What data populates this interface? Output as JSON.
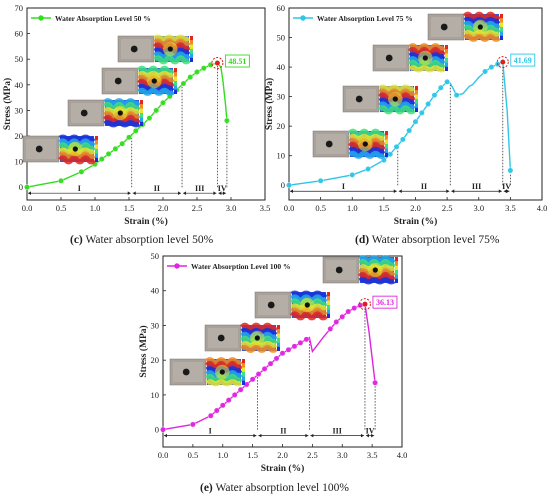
{
  "chart_data": [
    {
      "type": "line",
      "id": "c",
      "caption_tag": "(c)",
      "caption_text": "Water absorption level 50%",
      "legend": "Water Absorption Level 50 %",
      "color": "#33dd1e",
      "xlabel": "Strain (%)",
      "ylabel": "Stress (MPa)",
      "xlim": [
        0,
        3.5
      ],
      "ylim": [
        -5,
        70
      ],
      "xticks": [
        "0.0",
        "0.5",
        "1.0",
        "1.5",
        "2.0",
        "2.5",
        "3.0",
        "3.5"
      ],
      "yticks": [
        "0",
        "10",
        "20",
        "30",
        "40",
        "50",
        "60",
        "70"
      ],
      "series": [
        {
          "x": [
            0.0,
            0.2,
            0.5,
            0.8,
            1.0,
            1.1,
            1.2,
            1.3,
            1.4,
            1.5,
            1.6,
            1.7,
            1.8,
            1.9,
            2.0,
            2.1,
            2.2,
            2.3,
            2.4,
            2.5,
            2.6,
            2.7,
            2.8,
            2.85,
            2.88,
            2.92,
            2.94
          ],
          "y": [
            0.0,
            1.0,
            2.5,
            6.0,
            9.0,
            11.0,
            13.0,
            15.0,
            17.0,
            19.5,
            22.0,
            24.5,
            27.0,
            30.0,
            33.0,
            35.5,
            38.0,
            40.5,
            43.0,
            45.0,
            46.5,
            47.8,
            48.51,
            47.0,
            42.0,
            32.0,
            26.0
          ]
        }
      ],
      "markers_x": [
        0.0,
        0.5,
        0.8,
        1.0,
        1.1,
        1.2,
        1.3,
        1.4,
        1.5,
        1.6,
        1.7,
        1.8,
        1.9,
        2.0,
        2.1,
        2.2,
        2.3,
        2.4,
        2.5,
        2.6,
        2.7,
        2.8,
        2.94
      ],
      "peak": {
        "x": 2.8,
        "y": 48.51,
        "label": "48.51"
      },
      "stage_boundaries": [
        1.54,
        2.28,
        2.8,
        2.94
      ],
      "stages": [
        "I",
        "II",
        "III",
        "IV"
      ]
    },
    {
      "type": "line",
      "id": "d",
      "caption_tag": "(d)",
      "caption_text": "Water absorption level 75%",
      "legend": "Water Absorption Level 75 %",
      "color": "#2ec6e8",
      "xlabel": "Strain (%)",
      "ylabel": "Stress (MPa)",
      "xlim": [
        0,
        4.0
      ],
      "ylim": [
        -5,
        60
      ],
      "xticks": [
        "0.0",
        "0.5",
        "1.0",
        "1.5",
        "2.0",
        "2.5",
        "3.0",
        "3.5",
        "4.0"
      ],
      "yticks": [
        "0",
        "10",
        "20",
        "30",
        "40",
        "50",
        "60"
      ],
      "series": [
        {
          "x": [
            0.0,
            0.5,
            1.0,
            1.25,
            1.5,
            1.6,
            1.7,
            1.8,
            1.9,
            2.0,
            2.1,
            2.2,
            2.3,
            2.4,
            2.5,
            2.55,
            2.65,
            2.75,
            2.85,
            2.9,
            3.0,
            3.1,
            3.2,
            3.3,
            3.38,
            3.45,
            3.5
          ],
          "y": [
            0.0,
            1.5,
            3.5,
            5.5,
            8.5,
            10.5,
            13.0,
            15.5,
            18.5,
            21.5,
            24.5,
            27.5,
            30.5,
            33.0,
            35.0,
            34.5,
            30.5,
            31.0,
            33.5,
            34.0,
            36.5,
            38.5,
            40.0,
            41.0,
            41.69,
            25.0,
            5.0
          ]
        }
      ],
      "markers_x": [
        0.0,
        0.5,
        1.0,
        1.25,
        1.5,
        1.6,
        1.7,
        1.8,
        1.9,
        2.0,
        2.1,
        2.2,
        2.3,
        2.4,
        2.5,
        2.65,
        3.1,
        3.2,
        3.3,
        3.38,
        3.5
      ],
      "peak": {
        "x": 3.38,
        "y": 41.69,
        "label": "41.69"
      },
      "stage_boundaries": [
        1.72,
        2.55,
        3.38,
        3.5
      ],
      "stages": [
        "I",
        "II",
        "III",
        "IV"
      ]
    },
    {
      "type": "line",
      "id": "e",
      "caption_tag": "(e)",
      "caption_text": "Water absorption level 100%",
      "legend": "Water Absorption Level 100 %",
      "color": "#e024e0",
      "xlabel": "Strain (%)",
      "ylabel": "Stress (MPa)",
      "xlim": [
        0,
        4.0
      ],
      "ylim": [
        -5,
        50
      ],
      "xticks": [
        "0.0",
        "0.5",
        "1.0",
        "1.5",
        "2.0",
        "2.5",
        "3.0",
        "3.5",
        "4.0"
      ],
      "yticks": [
        "0",
        "10",
        "20",
        "30",
        "40",
        "50"
      ],
      "series": [
        {
          "x": [
            0.0,
            0.5,
            0.8,
            0.9,
            1.0,
            1.1,
            1.2,
            1.3,
            1.4,
            1.5,
            1.6,
            1.7,
            1.8,
            1.9,
            2.0,
            2.1,
            2.2,
            2.3,
            2.4,
            2.45,
            2.5,
            2.7,
            2.8,
            2.9,
            3.0,
            3.1,
            3.2,
            3.3,
            3.38,
            3.45,
            3.55
          ],
          "y": [
            0.0,
            1.5,
            4.0,
            5.5,
            7.0,
            8.5,
            10.0,
            11.5,
            13.0,
            14.5,
            16.0,
            17.5,
            19.0,
            20.5,
            22.0,
            23.0,
            24.0,
            25.0,
            26.0,
            26.5,
            22.5,
            27.0,
            29.0,
            31.0,
            32.5,
            34.0,
            35.0,
            35.8,
            36.13,
            28.0,
            13.5
          ]
        }
      ],
      "markers_x": [
        0.0,
        0.5,
        0.8,
        0.9,
        1.0,
        1.1,
        1.2,
        1.3,
        1.4,
        1.5,
        1.6,
        1.7,
        1.8,
        1.9,
        2.0,
        2.1,
        2.2,
        2.3,
        2.4,
        2.8,
        2.9,
        3.0,
        3.1,
        3.2,
        3.3,
        3.38,
        3.55
      ],
      "peak": {
        "x": 3.38,
        "y": 36.13,
        "label": "36.13"
      },
      "stage_boundaries": [
        1.58,
        2.45,
        3.38,
        3.55
      ],
      "stages": [
        "I",
        "II",
        "III",
        "IV"
      ]
    }
  ]
}
